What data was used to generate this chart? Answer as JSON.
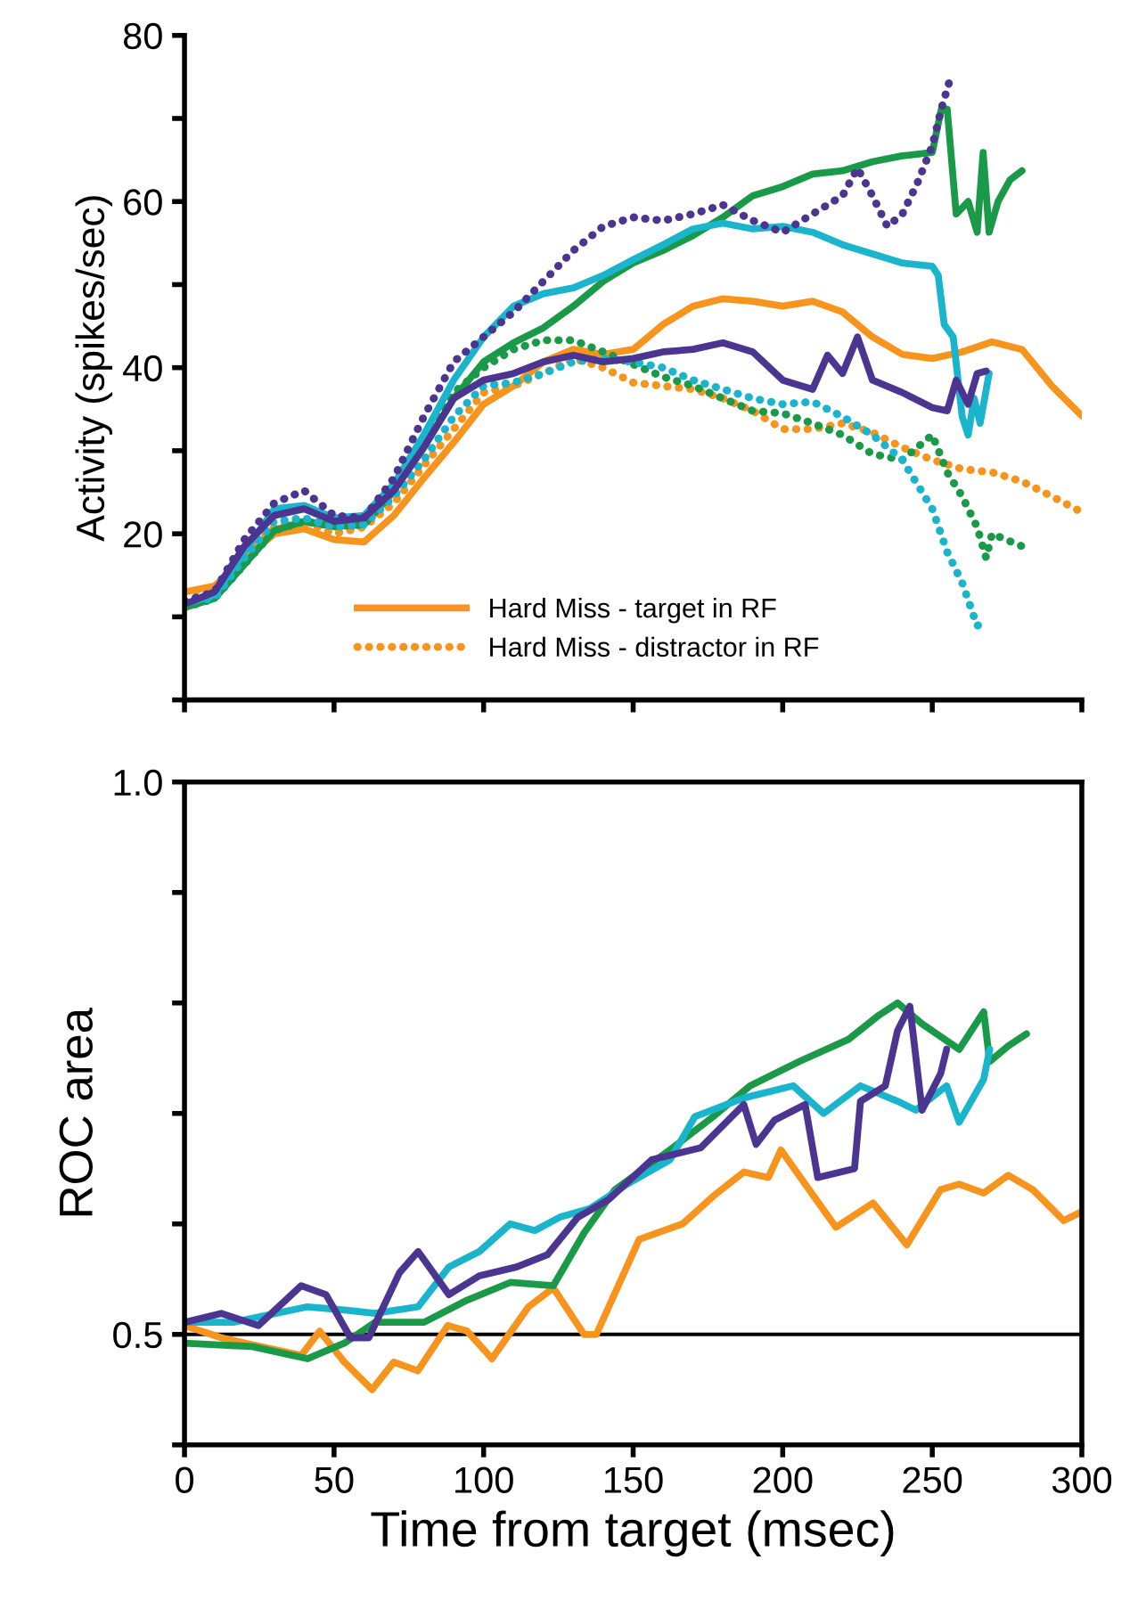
{
  "chart_data": [
    {
      "type": "line",
      "ylabel": "Activity (spikes/sec)",
      "xlim": [
        0,
        300
      ],
      "xticks": [
        0,
        50,
        100,
        150,
        200,
        250,
        300
      ],
      "ylim": [
        0,
        80
      ],
      "yticks": [
        {
          "value": 0,
          "label": null
        },
        {
          "value": 10,
          "label": null
        },
        20,
        {
          "value": 30,
          "label": null
        },
        40,
        {
          "value": 50,
          "label": null
        },
        60,
        {
          "value": 70,
          "label": null
        },
        80
      ],
      "tick_labels": "y",
      "legend": "bottom",
      "grid": false,
      "series": [
        {
          "name": "Hard Miss - target in RF",
          "color": "#f7941d",
          "line_style": "solid",
          "x": [
            0,
            10,
            20,
            30,
            40,
            50,
            60,
            70,
            80,
            90,
            100,
            110,
            120,
            130,
            140,
            150,
            160,
            170,
            180,
            190,
            200,
            210,
            220,
            230,
            240,
            250,
            260,
            270,
            280,
            290,
            300
          ],
          "values": [
            13,
            13.7,
            17,
            20,
            20.6,
            19.3,
            19,
            22.2,
            26.7,
            31,
            35.6,
            37.8,
            40.7,
            42.2,
            41.6,
            42.2,
            45.2,
            47.4,
            48.3,
            48,
            47.4,
            48,
            46.7,
            43.7,
            41.6,
            41.1,
            41.9,
            43.1,
            42.2,
            37.8,
            34.2
          ]
        },
        {
          "name": "Hard Miss - distractor in RF",
          "color": "#f7941d",
          "line_style": "dotted",
          "x": [
            0,
            10,
            20,
            30,
            40,
            50,
            60,
            70,
            80,
            90,
            100,
            110,
            120,
            130,
            140,
            150,
            160,
            170,
            180,
            190,
            200,
            210,
            220,
            230,
            240,
            250,
            260,
            270,
            280,
            290,
            300
          ],
          "values": [
            13,
            13.4,
            17.4,
            20.8,
            21.5,
            20,
            20.8,
            23.7,
            28.2,
            32.6,
            37,
            37.8,
            39.3,
            41.1,
            40,
            38.2,
            37.8,
            37.4,
            36.3,
            34.8,
            32.6,
            32.6,
            33.3,
            32.2,
            30.4,
            28.9,
            27.8,
            27.4,
            26.3,
            24.5,
            22.6
          ]
        },
        {
          "color": "#1a9a48",
          "line_style": "solid",
          "x": [
            0,
            10,
            20,
            30,
            40,
            50,
            60,
            70,
            80,
            90,
            100,
            110,
            120,
            130,
            140,
            150,
            160,
            170,
            180,
            190,
            200,
            210,
            220,
            230,
            240,
            250,
            253,
            255,
            258,
            262,
            265,
            267,
            269,
            272,
            276,
            280
          ],
          "values": [
            11.1,
            12.2,
            16.3,
            20.4,
            21.5,
            20.9,
            21.1,
            25.2,
            30.4,
            36.3,
            40.7,
            43,
            44.8,
            47.4,
            50.4,
            52.6,
            54.1,
            55.9,
            58.1,
            60.7,
            61.8,
            63.3,
            63.7,
            64.8,
            65.5,
            65.9,
            71.1,
            71.1,
            58.5,
            60,
            56.3,
            65.9,
            56.3,
            60,
            62.6,
            63.7
          ]
        },
        {
          "color": "#1a9a48",
          "line_style": "dotted",
          "x": [
            0,
            10,
            20,
            30,
            40,
            50,
            60,
            70,
            80,
            90,
            100,
            110,
            120,
            130,
            140,
            150,
            160,
            170,
            180,
            190,
            200,
            210,
            220,
            230,
            240,
            250,
            255,
            260,
            265,
            268,
            270,
            280
          ],
          "values": [
            11.1,
            12.2,
            16.3,
            20.4,
            21.5,
            20.9,
            21.1,
            25.2,
            31.1,
            37,
            40,
            42.2,
            43.3,
            43.3,
            41.9,
            40.4,
            38.9,
            37.8,
            36.3,
            34.8,
            34.5,
            33.3,
            31.9,
            29.6,
            28.9,
            31.9,
            27.4,
            24.5,
            20.8,
            17.1,
            20,
            18.5
          ]
        },
        {
          "color": "#1ab5cc",
          "line_style": "solid",
          "x": [
            0,
            10,
            20,
            30,
            40,
            50,
            60,
            70,
            80,
            90,
            100,
            110,
            120,
            130,
            140,
            150,
            160,
            170,
            180,
            190,
            200,
            210,
            220,
            230,
            240,
            250,
            252,
            254,
            257,
            260,
            262,
            264,
            266,
            269
          ],
          "values": [
            11.5,
            12.6,
            17.8,
            23,
            23.4,
            21.9,
            22.2,
            26,
            31.9,
            38.5,
            43.7,
            47.4,
            48.9,
            49.6,
            51.1,
            53,
            54.8,
            56.7,
            57.4,
            56.7,
            57,
            56.3,
            54.8,
            53.7,
            52.6,
            52.2,
            51.1,
            45.2,
            43.7,
            34.1,
            31.9,
            36.3,
            33.3,
            39.3
          ]
        },
        {
          "color": "#1ab5cc",
          "line_style": "dotted",
          "x": [
            0,
            10,
            20,
            30,
            40,
            50,
            60,
            70,
            80,
            90,
            100,
            110,
            120,
            130,
            140,
            150,
            160,
            170,
            180,
            190,
            200,
            210,
            220,
            230,
            240,
            250,
            255,
            260,
            265,
            268
          ],
          "values": [
            11.9,
            12.2,
            17.1,
            21.5,
            21.9,
            20.8,
            21.1,
            24.5,
            28.9,
            34.1,
            37.8,
            38.2,
            39.3,
            40.7,
            41.1,
            40.7,
            40,
            38.5,
            37.4,
            36.3,
            35.6,
            35.9,
            34.1,
            31.9,
            28.9,
            23,
            17.8,
            14.1,
            8.9,
            9.7
          ]
        },
        {
          "color": "#4b3590",
          "line_style": "solid",
          "x": [
            0,
            10,
            20,
            30,
            40,
            50,
            60,
            70,
            80,
            90,
            100,
            110,
            120,
            130,
            140,
            150,
            160,
            170,
            180,
            190,
            200,
            210,
            215,
            220,
            225,
            230,
            240,
            250,
            255,
            258,
            262,
            265,
            268
          ],
          "values": [
            11.5,
            13,
            18.5,
            22.2,
            23,
            21.5,
            21.9,
            25.2,
            30.4,
            36.3,
            38.5,
            39.3,
            40.7,
            41.5,
            40.7,
            41.1,
            41.9,
            42.2,
            43,
            41.9,
            38.5,
            37.4,
            41.5,
            39.3,
            43.7,
            38.5,
            37,
            35.2,
            34.8,
            38.5,
            35.6,
            39.3,
            39.6
          ]
        },
        {
          "color": "#4b3590",
          "line_style": "dotted",
          "x": [
            0,
            10,
            20,
            30,
            40,
            50,
            60,
            70,
            80,
            90,
            100,
            110,
            120,
            130,
            140,
            150,
            160,
            170,
            180,
            190,
            200,
            210,
            220,
            225,
            230,
            235,
            240,
            245,
            250,
            253,
            256
          ],
          "values": [
            11.9,
            13,
            19.3,
            23.7,
            25.2,
            22.2,
            21.9,
            26.7,
            34.1,
            40.7,
            43.7,
            46.7,
            50.4,
            54.1,
            57,
            58.1,
            57.7,
            58.5,
            59.6,
            57.7,
            56.3,
            58.5,
            60.7,
            64,
            60.7,
            57,
            58.5,
            62.2,
            66.7,
            71.1,
            74.8
          ]
        }
      ]
    },
    {
      "type": "line",
      "xlabel": "Time from target (msec)",
      "ylabel": "ROC area",
      "xlim": [
        0,
        300
      ],
      "xticks": [
        0,
        50,
        100,
        150,
        200,
        250,
        300
      ],
      "ylim": [
        0.4,
        1.0
      ],
      "yticks": [
        {
          "value": 0.4,
          "label": null
        },
        0.5,
        {
          "value": 0.6,
          "label": null
        },
        {
          "value": 0.7,
          "label": null
        },
        {
          "value": 0.8,
          "label": null
        },
        {
          "value": 0.9,
          "label": null
        },
        {
          "value": 1,
          "label": "1.0"
        }
      ],
      "grid": false,
      "ref_lines": [
        {
          "axis": "y",
          "value": 0.5,
          "color": "#000000",
          "line_style": "solid"
        }
      ],
      "series": [
        {
          "color": "#f7941d",
          "x": [
            0,
            12.3,
            20.5,
            39,
            45.2,
            53.4,
            62.7,
            70,
            78,
            88,
            94.5,
            102.8,
            115,
            123.3,
            133.6,
            137.7,
            152,
            166.5,
            176.7,
            187,
            195.2,
            199.4,
            209.6,
            217.8,
            230.2,
            241.5,
            252.8,
            259,
            267.2,
            275.4,
            283.6,
            293.9,
            300
          ],
          "values": [
            0.508,
            0.497,
            0.492,
            0.481,
            0.503,
            0.475,
            0.45,
            0.475,
            0.467,
            0.508,
            0.503,
            0.478,
            0.525,
            0.542,
            0.5,
            0.5,
            0.586,
            0.6,
            0.625,
            0.647,
            0.642,
            0.667,
            0.628,
            0.597,
            0.619,
            0.581,
            0.631,
            0.636,
            0.628,
            0.644,
            0.631,
            0.603,
            0.611
          ]
        },
        {
          "color": "#1a9a48",
          "x": [
            0,
            22.6,
            41.1,
            53.4,
            63.7,
            80.1,
            94.5,
            108.9,
            123.3,
            133.6,
            143.9,
            162.3,
            176.7,
            189.1,
            205.5,
            222,
            232.2,
            238.4,
            246.6,
            259,
            267.2,
            269.2,
            275.4,
            281.5
          ],
          "values": [
            0.492,
            0.489,
            0.478,
            0.492,
            0.511,
            0.511,
            0.531,
            0.547,
            0.544,
            0.592,
            0.631,
            0.667,
            0.697,
            0.725,
            0.747,
            0.767,
            0.789,
            0.8,
            0.781,
            0.758,
            0.792,
            0.747,
            0.761,
            0.772
          ]
        },
        {
          "color": "#1ab5cc",
          "x": [
            0,
            16.4,
            41.1,
            53.4,
            63.7,
            78.1,
            88.4,
            98.6,
            108.9,
            117.1,
            125.4,
            135.6,
            148,
            162.3,
            170.6,
            187,
            203.5,
            213.7,
            226,
            238.4,
            244.5,
            254.8,
            259,
            267.2,
            269.2
          ],
          "values": [
            0.511,
            0.511,
            0.525,
            0.522,
            0.519,
            0.525,
            0.561,
            0.575,
            0.6,
            0.594,
            0.606,
            0.614,
            0.636,
            0.658,
            0.697,
            0.714,
            0.725,
            0.7,
            0.725,
            0.711,
            0.703,
            0.725,
            0.692,
            0.731,
            0.758
          ]
        },
        {
          "color": "#4b3590",
          "x": [
            0,
            12.3,
            24.7,
            39,
            47.3,
            55.5,
            61.6,
            71.9,
            78.1,
            88.4,
            98.6,
            111,
            121.3,
            131.5,
            141.8,
            156.2,
            172.6,
            187,
            191.1,
            197.3,
            207.5,
            211.7,
            224,
            226,
            234.3,
            238.4,
            242.5,
            246.6,
            252.8,
            254.8
          ],
          "values": [
            0.511,
            0.519,
            0.508,
            0.544,
            0.536,
            0.497,
            0.497,
            0.556,
            0.575,
            0.536,
            0.553,
            0.561,
            0.572,
            0.606,
            0.622,
            0.658,
            0.669,
            0.708,
            0.672,
            0.694,
            0.708,
            0.642,
            0.65,
            0.711,
            0.725,
            0.775,
            0.797,
            0.703,
            0.736,
            0.758
          ]
        }
      ]
    }
  ]
}
